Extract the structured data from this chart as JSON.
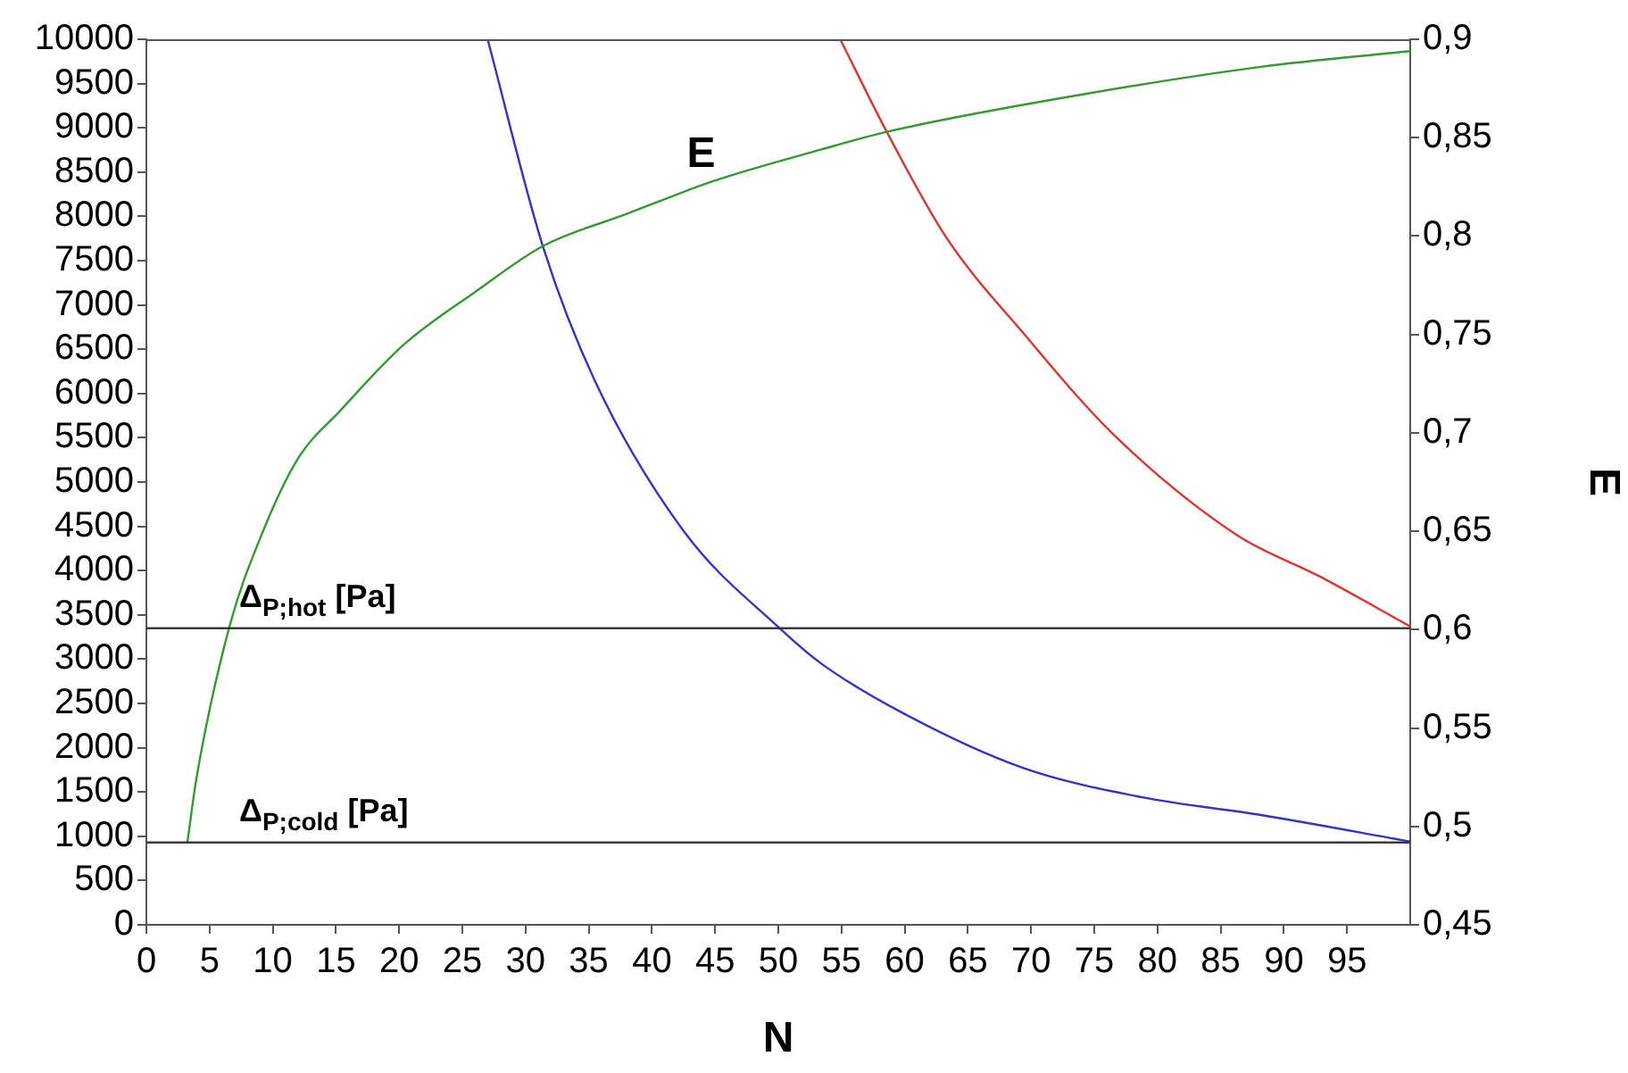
{
  "chart_data": {
    "type": "line",
    "xlabel": "N",
    "y2label": "E",
    "xlim": [
      0,
      100
    ],
    "xticks": [
      0,
      5,
      10,
      15,
      20,
      25,
      30,
      35,
      40,
      45,
      50,
      55,
      60,
      65,
      70,
      75,
      80,
      85,
      90,
      95
    ],
    "ylim": [
      0,
      10000
    ],
    "yticks": [
      0,
      500,
      1000,
      1500,
      2000,
      2500,
      3000,
      3500,
      4000,
      4500,
      5000,
      5500,
      6000,
      6500,
      7000,
      7500,
      8000,
      8500,
      9000,
      9500,
      10000
    ],
    "y2lim": [
      0.45,
      0.9
    ],
    "y2ticks": [
      {
        "value": 0.45,
        "label": "0,45"
      },
      {
        "value": 0.5,
        "label": "0,5"
      },
      {
        "value": 0.55,
        "label": "0,55"
      },
      {
        "value": 0.6,
        "label": "0,6"
      },
      {
        "value": 0.65,
        "label": "0,65"
      },
      {
        "value": 0.7,
        "label": "0,7"
      },
      {
        "value": 0.75,
        "label": "0,75"
      },
      {
        "value": 0.8,
        "label": "0,8"
      },
      {
        "value": 0.85,
        "label": "0,85"
      },
      {
        "value": 0.9,
        "label": "0,9"
      }
    ],
    "series": [
      {
        "color": "#339933",
        "axis": "y2",
        "x": [
          3.25,
          3.95,
          6.55,
          9.1,
          12,
          15.3,
          20.4,
          26.1,
          31.4,
          37.9,
          44.9,
          53.4,
          58.6,
          74.1,
          88.2,
          100
        ],
        "values": [
          0.492,
          0.524,
          0.601,
          0.648,
          0.687,
          0.711,
          0.745,
          0.772,
          0.795,
          0.811,
          0.828,
          0.844,
          0.853,
          0.872,
          0.886,
          0.894
        ]
      },
      {
        "color": "#3333cc",
        "x": [
          27,
          31.4,
          35.5,
          42.6,
          50.1,
          53.4,
          60,
          69.4,
          78.8,
          88.2,
          100
        ],
        "values": [
          10000,
          7650,
          6140,
          4430,
          3350,
          2950,
          2380,
          1770,
          1440,
          1240,
          940
        ]
      },
      {
        "color": "#dd3333",
        "x": [
          54.9,
          58.6,
          63.3,
          69.4,
          76.5,
          86.3,
          92.9,
          100
        ],
        "values": [
          10000,
          8950,
          7760,
          6680,
          5540,
          4400,
          3930,
          3370
        ]
      }
    ],
    "ref_lines": [
      {
        "axis": "y",
        "value": 3350,
        "label": "Δ$_{P;hot}$ [Pa]"
      },
      {
        "axis": "y",
        "value": 930,
        "label": "Δ$_{P;cold}$ [Pa]"
      }
    ],
    "annotations": [
      {
        "text": "E",
        "x": 43.9,
        "y": 8370
      }
    ],
    "grid": false,
    "legend": false,
    "marker": "none",
    "line_style": "solid"
  }
}
